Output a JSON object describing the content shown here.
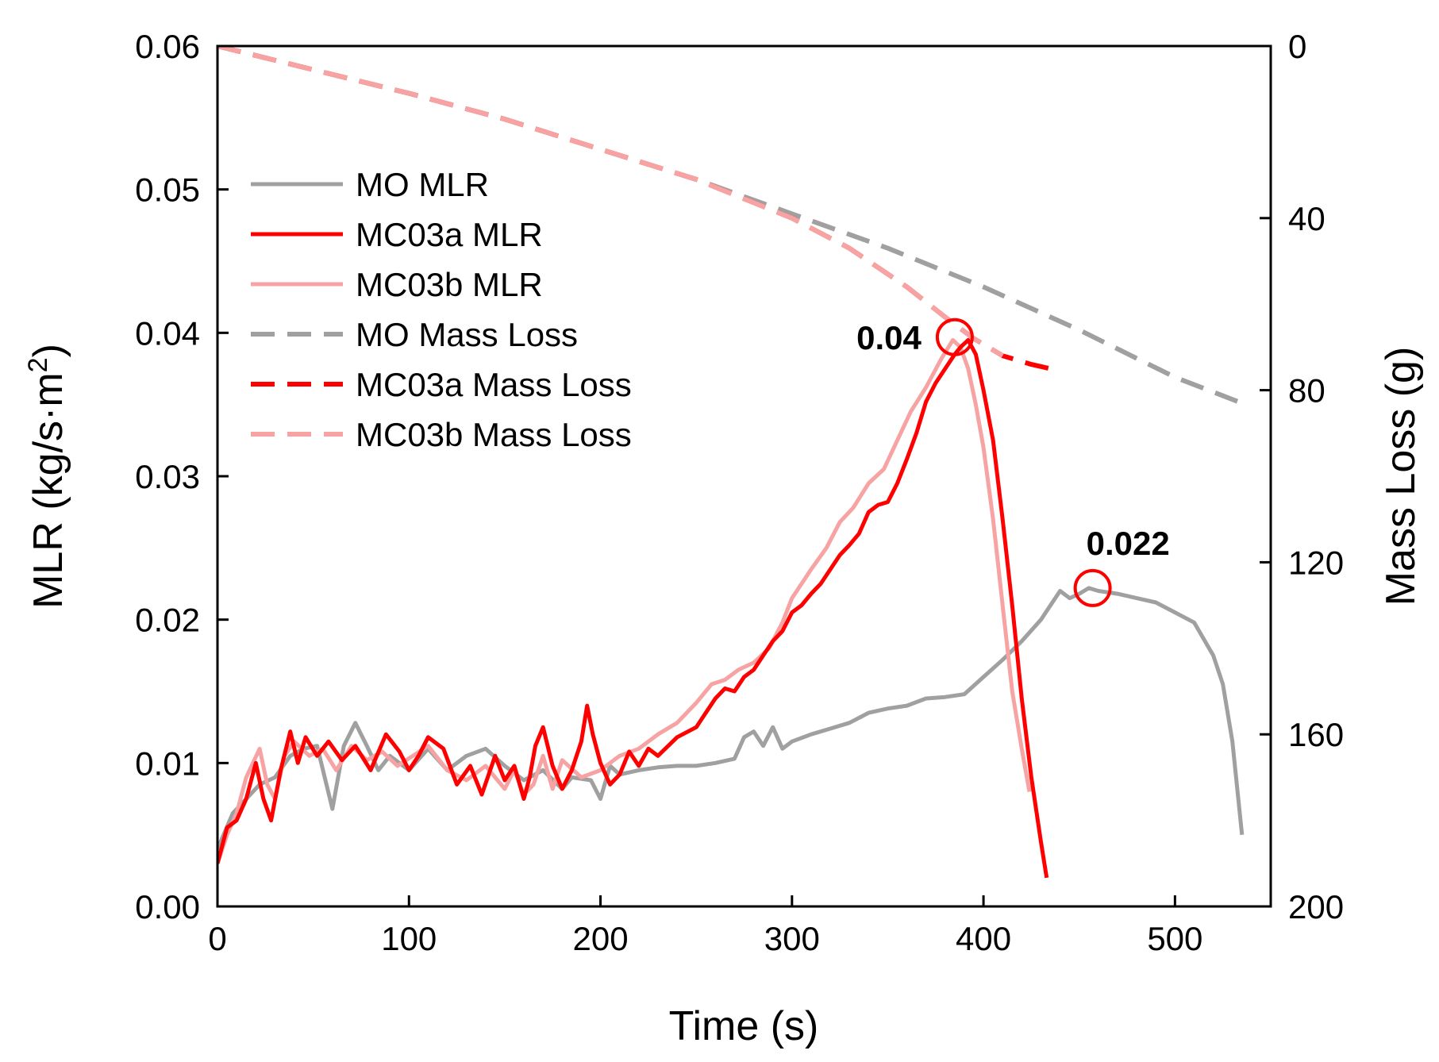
{
  "chart_data": {
    "type": "line",
    "x_axis": {
      "label": "Time (s)",
      "range": [
        0,
        550
      ],
      "ticks": [
        0,
        100,
        200,
        300,
        400,
        500
      ]
    },
    "y_axis_left": {
      "label": "MLR (kg/s·m²)",
      "label_main": "MLR (kg/s·m",
      "label_sup": "2",
      "label_end": ")",
      "range": [
        0,
        0.06
      ],
      "ticks": [
        {
          "v": 0,
          "t": "0.00"
        },
        {
          "v": 0.01,
          "t": "0.01"
        },
        {
          "v": 0.02,
          "t": "0.02"
        },
        {
          "v": 0.03,
          "t": "0.03"
        },
        {
          "v": 0.04,
          "t": "0.04"
        },
        {
          "v": 0.05,
          "t": "0.05"
        },
        {
          "v": 0.06,
          "t": "0.06"
        }
      ]
    },
    "y_axis_right": {
      "label": "Mass Loss (g)",
      "range": [
        0,
        200
      ],
      "inverted": true,
      "ticks": [
        0,
        40,
        80,
        120,
        160,
        200
      ]
    },
    "grid": false,
    "legend_position": "upper-left",
    "series": [
      {
        "name": "MO MLR",
        "axis": "left",
        "style": "solid",
        "color": "#a0a0a0",
        "x": [
          0,
          8,
          15,
          22,
          30,
          38,
          45,
          52,
          56,
          60,
          66,
          72,
          78,
          84,
          90,
          100,
          110,
          120,
          130,
          140,
          150,
          160,
          170,
          180,
          185,
          195,
          200,
          205,
          210,
          220,
          230,
          240,
          250,
          260,
          270,
          275,
          280,
          285,
          290,
          295,
          300,
          310,
          320,
          330,
          340,
          350,
          360,
          370,
          380,
          390,
          400,
          410,
          420,
          430,
          435,
          440,
          445,
          450,
          455,
          460,
          470,
          480,
          490,
          500,
          510,
          520,
          525,
          530,
          535
        ],
        "y": [
          0.004,
          0.0065,
          0.0075,
          0.0085,
          0.009,
          0.0105,
          0.011,
          0.0112,
          0.009,
          0.0068,
          0.0112,
          0.0128,
          0.0112,
          0.0095,
          0.0105,
          0.0095,
          0.011,
          0.0095,
          0.0105,
          0.011,
          0.0098,
          0.0088,
          0.0095,
          0.0082,
          0.009,
          0.0088,
          0.0075,
          0.0098,
          0.0092,
          0.0095,
          0.0097,
          0.0098,
          0.0098,
          0.01,
          0.0103,
          0.0118,
          0.0122,
          0.0112,
          0.0125,
          0.011,
          0.0115,
          0.012,
          0.0124,
          0.0128,
          0.0135,
          0.0138,
          0.014,
          0.0145,
          0.0146,
          0.0148,
          0.016,
          0.0172,
          0.0185,
          0.02,
          0.021,
          0.022,
          0.0215,
          0.0218,
          0.0222,
          0.022,
          0.0218,
          0.0215,
          0.0212,
          0.0205,
          0.0198,
          0.0175,
          0.0155,
          0.0115,
          0.005
        ]
      },
      {
        "name": "MC03a MLR",
        "axis": "left",
        "style": "solid",
        "color": "#ff0000",
        "x": [
          0,
          5,
          10,
          15,
          20,
          24,
          28,
          33,
          38,
          42,
          46,
          52,
          58,
          65,
          72,
          80,
          88,
          95,
          100,
          105,
          110,
          118,
          125,
          132,
          138,
          145,
          150,
          155,
          160,
          163,
          166,
          170,
          175,
          180,
          185,
          190,
          193,
          196,
          200,
          205,
          210,
          215,
          220,
          225,
          230,
          240,
          250,
          255,
          260,
          265,
          270,
          275,
          280,
          285,
          290,
          295,
          300,
          305,
          310,
          315,
          320,
          325,
          330,
          335,
          340,
          345,
          350,
          355,
          360,
          365,
          370,
          375,
          380,
          385,
          388,
          392,
          396,
          400,
          405,
          410,
          415,
          420,
          425,
          430,
          433
        ],
        "y": [
          0.003,
          0.0055,
          0.006,
          0.0075,
          0.01,
          0.0075,
          0.006,
          0.0095,
          0.0122,
          0.01,
          0.0118,
          0.0105,
          0.0115,
          0.0102,
          0.0112,
          0.0095,
          0.012,
          0.0108,
          0.0095,
          0.0105,
          0.0118,
          0.011,
          0.0085,
          0.0098,
          0.0078,
          0.0105,
          0.0088,
          0.0098,
          0.0075,
          0.009,
          0.0112,
          0.0125,
          0.0098,
          0.0082,
          0.0095,
          0.0115,
          0.014,
          0.012,
          0.01,
          0.0085,
          0.0092,
          0.0108,
          0.0098,
          0.011,
          0.0105,
          0.0118,
          0.0125,
          0.0135,
          0.0145,
          0.0152,
          0.015,
          0.016,
          0.0165,
          0.0175,
          0.0185,
          0.0192,
          0.0205,
          0.021,
          0.0218,
          0.0225,
          0.0235,
          0.0245,
          0.0252,
          0.026,
          0.0275,
          0.028,
          0.0282,
          0.0295,
          0.0312,
          0.033,
          0.0352,
          0.0365,
          0.0375,
          0.0385,
          0.039,
          0.0395,
          0.0385,
          0.036,
          0.0325,
          0.027,
          0.021,
          0.0145,
          0.009,
          0.0045,
          0.002
        ]
      },
      {
        "name": "MC03b MLR",
        "axis": "left",
        "style": "solid",
        "color": "#f7a3a3",
        "x": [
          0,
          5,
          10,
          15,
          22,
          26,
          30,
          35,
          40,
          48,
          55,
          62,
          70,
          78,
          86,
          94,
          102,
          110,
          120,
          130,
          140,
          150,
          155,
          160,
          165,
          170,
          175,
          180,
          190,
          200,
          210,
          220,
          230,
          240,
          250,
          258,
          265,
          272,
          280,
          288,
          295,
          300,
          305,
          310,
          318,
          325,
          332,
          340,
          348,
          355,
          362,
          370,
          378,
          384,
          388,
          392,
          396,
          400,
          405,
          410,
          415,
          420,
          424
        ],
        "y": [
          0.003,
          0.005,
          0.0065,
          0.009,
          0.011,
          0.0085,
          0.0075,
          0.0105,
          0.0115,
          0.0105,
          0.011,
          0.0095,
          0.0112,
          0.0102,
          0.0108,
          0.0098,
          0.0105,
          0.0112,
          0.0095,
          0.0088,
          0.0098,
          0.0082,
          0.0095,
          0.0078,
          0.0085,
          0.0105,
          0.0082,
          0.0102,
          0.009,
          0.0095,
          0.0105,
          0.011,
          0.012,
          0.0128,
          0.0142,
          0.0155,
          0.0158,
          0.0165,
          0.017,
          0.018,
          0.0198,
          0.0215,
          0.0225,
          0.0235,
          0.025,
          0.0268,
          0.0278,
          0.0295,
          0.0305,
          0.0325,
          0.0345,
          0.0362,
          0.0382,
          0.0395,
          0.039,
          0.0375,
          0.035,
          0.032,
          0.027,
          0.021,
          0.015,
          0.011,
          0.008
        ]
      },
      {
        "name": "MO Mass Loss",
        "axis": "right",
        "style": "dashed",
        "color": "#a0a0a0",
        "x": [
          0,
          50,
          100,
          150,
          200,
          250,
          300,
          350,
          400,
          450,
          500,
          535
        ],
        "y": [
          0,
          5.5,
          11,
          17,
          24,
          31,
          39,
          47,
          56,
          66,
          77,
          83
        ]
      },
      {
        "name": "MC03a Mass Loss",
        "axis": "right",
        "style": "dashed",
        "color": "#ff0000",
        "x": [
          0,
          50,
          100,
          150,
          200,
          250,
          300,
          330,
          360,
          380,
          395,
          410,
          425,
          435
        ],
        "y": [
          0,
          5.5,
          11,
          17,
          24,
          31,
          40,
          47,
          56,
          63,
          68,
          72,
          74,
          75
        ]
      },
      {
        "name": "MC03b Mass Loss",
        "axis": "right",
        "style": "dashed",
        "color": "#f7a3a3",
        "x": [
          0,
          50,
          100,
          150,
          200,
          250,
          300,
          330,
          360,
          380,
          395,
          410
        ],
        "y": [
          0,
          5.5,
          11,
          17,
          24,
          31,
          40,
          47,
          56,
          63,
          68,
          72
        ]
      }
    ],
    "annotations": [
      {
        "text": "0.04",
        "x": 385,
        "y": 0.0397,
        "label_side": "left",
        "color": "#ff0000"
      },
      {
        "text": "0.022",
        "x": 457,
        "y": 0.0222,
        "label_side": "above-right",
        "color": "#ff0000"
      }
    ]
  }
}
